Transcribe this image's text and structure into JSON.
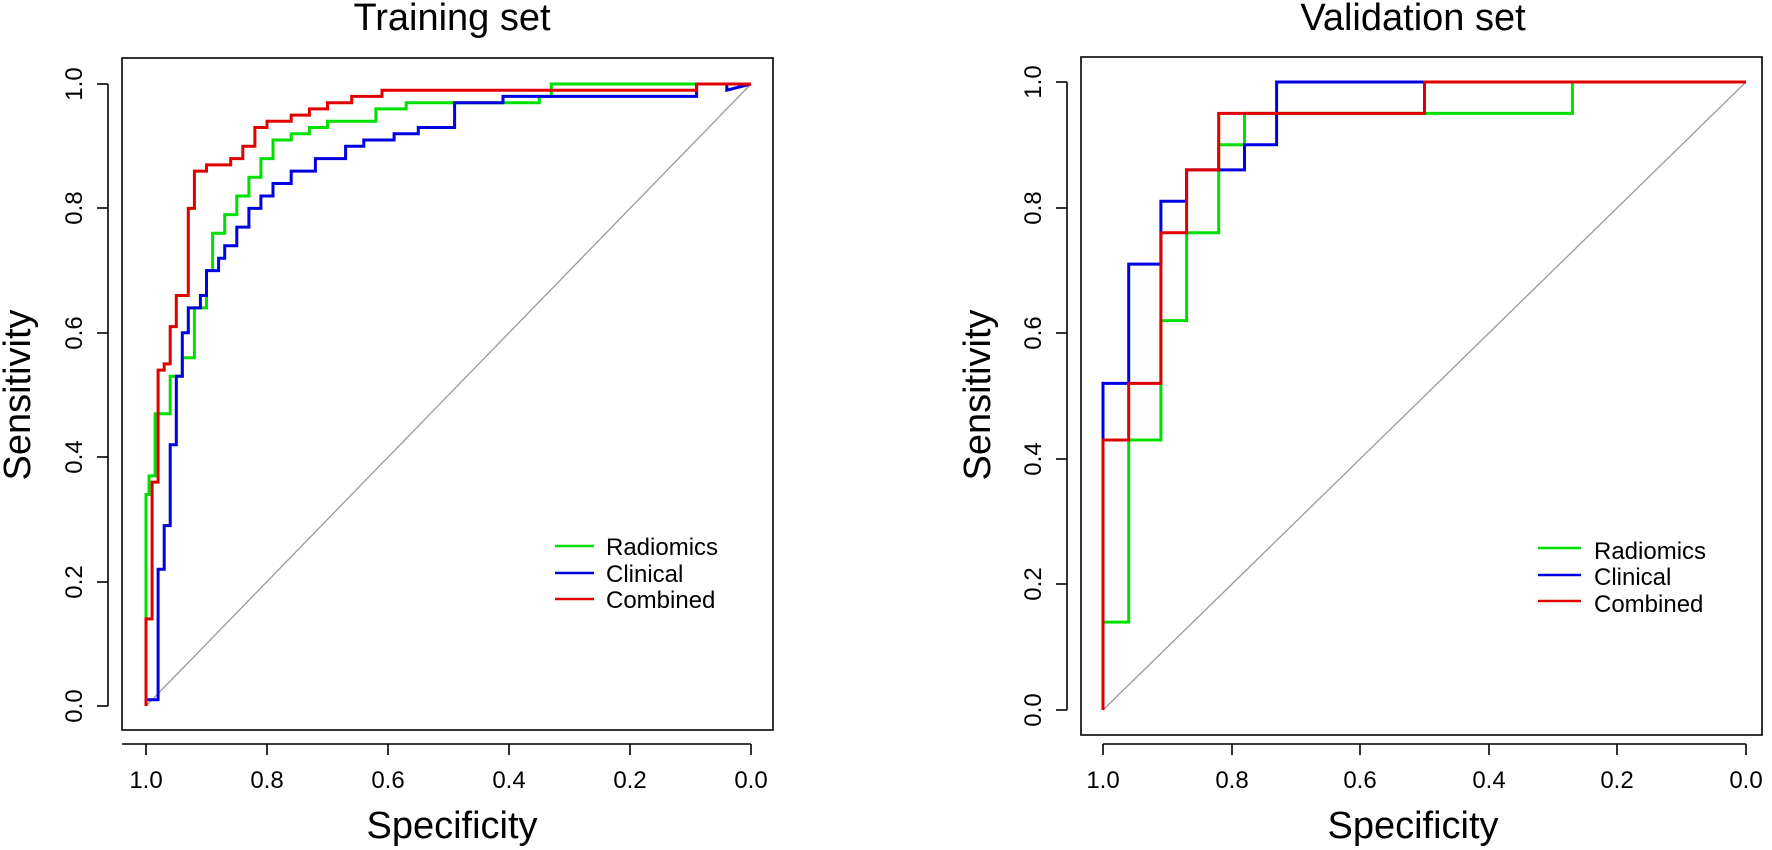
{
  "chart_data": [
    {
      "type": "line",
      "title": "Training set",
      "xlabel": "Specificity",
      "ylabel": "Sensitivity",
      "xlim": [
        1.0,
        0.0
      ],
      "ylim": [
        0.0,
        1.0
      ],
      "x_ticks": [
        "1.0",
        "0.8",
        "0.6",
        "0.4",
        "0.2",
        "0.0"
      ],
      "y_ticks": [
        "0.0",
        "0.2",
        "0.4",
        "0.6",
        "0.8",
        "1.0"
      ],
      "legend_position": "bottom-right",
      "diagonal_reference": true,
      "series": [
        {
          "name": "Radiomics",
          "color": "#00e000",
          "x": [
            1.0,
            1.0,
            0.995,
            0.995,
            0.985,
            0.985,
            0.96,
            0.96,
            0.94,
            0.94,
            0.92,
            0.92,
            0.9,
            0.9,
            0.89,
            0.89,
            0.87,
            0.87,
            0.85,
            0.85,
            0.83,
            0.83,
            0.81,
            0.81,
            0.79,
            0.79,
            0.76,
            0.76,
            0.73,
            0.73,
            0.7,
            0.7,
            0.62,
            0.62,
            0.57,
            0.57,
            0.46,
            0.46,
            0.35,
            0.35,
            0.33,
            0.33,
            0.0
          ],
          "y": [
            0.0,
            0.34,
            0.34,
            0.37,
            0.37,
            0.47,
            0.47,
            0.53,
            0.53,
            0.56,
            0.56,
            0.64,
            0.64,
            0.7,
            0.7,
            0.76,
            0.76,
            0.79,
            0.79,
            0.82,
            0.82,
            0.85,
            0.85,
            0.88,
            0.88,
            0.91,
            0.91,
            0.92,
            0.92,
            0.93,
            0.93,
            0.94,
            0.94,
            0.96,
            0.96,
            0.97,
            0.97,
            0.97,
            0.97,
            0.98,
            0.98,
            1.0,
            1.0
          ]
        },
        {
          "name": "Clinical",
          "color": "#0000e0",
          "x": [
            1.0,
            0.98,
            0.98,
            0.97,
            0.97,
            0.96,
            0.96,
            0.95,
            0.95,
            0.94,
            0.94,
            0.93,
            0.93,
            0.91,
            0.91,
            0.9,
            0.9,
            0.88,
            0.88,
            0.87,
            0.87,
            0.85,
            0.85,
            0.83,
            0.83,
            0.81,
            0.81,
            0.79,
            0.79,
            0.76,
            0.76,
            0.72,
            0.72,
            0.67,
            0.67,
            0.64,
            0.64,
            0.59,
            0.59,
            0.55,
            0.55,
            0.49,
            0.49,
            0.41,
            0.41,
            0.09,
            0.09,
            0.04,
            0.04,
            0.0
          ],
          "y": [
            0.01,
            0.01,
            0.22,
            0.22,
            0.29,
            0.29,
            0.42,
            0.42,
            0.53,
            0.53,
            0.6,
            0.6,
            0.64,
            0.64,
            0.66,
            0.66,
            0.7,
            0.7,
            0.72,
            0.72,
            0.74,
            0.74,
            0.77,
            0.77,
            0.8,
            0.8,
            0.82,
            0.82,
            0.84,
            0.84,
            0.86,
            0.86,
            0.88,
            0.88,
            0.9,
            0.9,
            0.91,
            0.91,
            0.92,
            0.92,
            0.93,
            0.93,
            0.97,
            0.97,
            0.98,
            0.98,
            1.0,
            1.0,
            0.99,
            1.0
          ]
        },
        {
          "name": "Combined",
          "color": "#e00000",
          "x": [
            1.0,
            1.0,
            0.99,
            0.99,
            0.98,
            0.98,
            0.97,
            0.97,
            0.96,
            0.96,
            0.95,
            0.95,
            0.93,
            0.93,
            0.92,
            0.92,
            0.9,
            0.9,
            0.88,
            0.88,
            0.86,
            0.86,
            0.84,
            0.84,
            0.82,
            0.82,
            0.8,
            0.8,
            0.76,
            0.76,
            0.73,
            0.73,
            0.7,
            0.7,
            0.66,
            0.66,
            0.61,
            0.61,
            0.09,
            0.09,
            0.0
          ],
          "y": [
            0.0,
            0.14,
            0.14,
            0.36,
            0.36,
            0.54,
            0.54,
            0.55,
            0.55,
            0.61,
            0.61,
            0.66,
            0.66,
            0.8,
            0.8,
            0.86,
            0.86,
            0.87,
            0.87,
            0.87,
            0.87,
            0.88,
            0.88,
            0.9,
            0.9,
            0.93,
            0.93,
            0.94,
            0.94,
            0.95,
            0.95,
            0.96,
            0.96,
            0.97,
            0.97,
            0.98,
            0.98,
            0.99,
            0.99,
            1.0,
            1.0
          ]
        }
      ]
    },
    {
      "type": "line",
      "title": "Validation set",
      "xlabel": "Specificity",
      "ylabel": "Sensitivity",
      "xlim": [
        1.0,
        0.0
      ],
      "ylim": [
        0.0,
        1.0
      ],
      "x_ticks": [
        "1.0",
        "0.8",
        "0.6",
        "0.4",
        "0.2",
        "0.0"
      ],
      "y_ticks": [
        "0.0",
        "0.2",
        "0.4",
        "0.6",
        "0.8",
        "1.0"
      ],
      "legend_position": "bottom-right",
      "diagonal_reference": true,
      "series": [
        {
          "name": "Radiomics",
          "color": "#00e000",
          "x": [
            1.0,
            0.96,
            0.96,
            0.91,
            0.91,
            0.87,
            0.87,
            0.82,
            0.82,
            0.78,
            0.78,
            0.73,
            0.73,
            0.5,
            0.5,
            0.27,
            0.27,
            0.0
          ],
          "y": [
            0.14,
            0.14,
            0.43,
            0.43,
            0.62,
            0.62,
            0.76,
            0.76,
            0.9,
            0.9,
            0.95,
            0.95,
            0.95,
            0.95,
            0.95,
            0.95,
            1.0,
            1.0
          ]
        },
        {
          "name": "Clinical",
          "color": "#0000e0",
          "x": [
            1.0,
            1.0,
            0.96,
            0.96,
            0.91,
            0.91,
            0.87,
            0.87,
            0.82,
            0.82,
            0.78,
            0.78,
            0.73,
            0.73,
            0.0
          ],
          "y": [
            0.43,
            0.52,
            0.52,
            0.71,
            0.71,
            0.81,
            0.81,
            0.86,
            0.86,
            0.86,
            0.86,
            0.9,
            0.9,
            1.0,
            1.0
          ]
        },
        {
          "name": "Combined",
          "color": "#e00000",
          "x": [
            1.0,
            1.0,
            0.96,
            0.96,
            0.91,
            0.91,
            0.87,
            0.87,
            0.82,
            0.82,
            0.5,
            0.5,
            0.0
          ],
          "y": [
            0.0,
            0.43,
            0.43,
            0.52,
            0.52,
            0.76,
            0.76,
            0.86,
            0.86,
            0.95,
            0.95,
            1.0,
            1.0
          ]
        }
      ]
    }
  ]
}
